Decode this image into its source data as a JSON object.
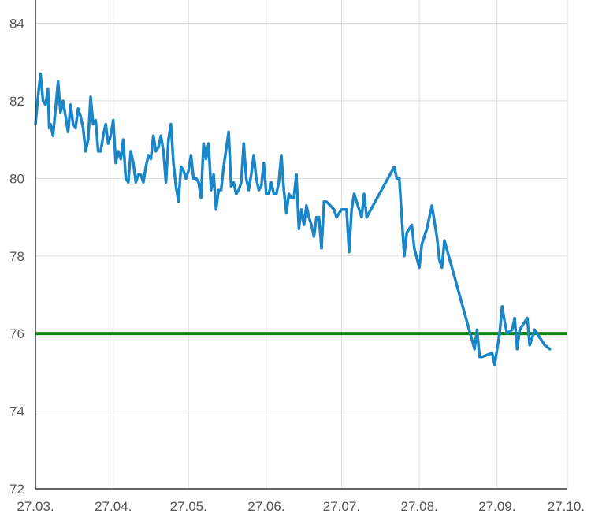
{
  "chart_data": {
    "type": "line",
    "title": "",
    "xlabel": "",
    "ylabel": "",
    "ylim": [
      72,
      84.6
    ],
    "xlim": [
      0,
      212
    ],
    "grid": true,
    "y_ticks": [
      72,
      74,
      76,
      78,
      80,
      82,
      84
    ],
    "x_ticks": [
      {
        "label": "27.03.",
        "value": 0
      },
      {
        "label": "27.04.",
        "value": 31
      },
      {
        "label": "27.05.",
        "value": 61
      },
      {
        "label": "27.06.",
        "value": 92
      },
      {
        "label": "27.07.",
        "value": 122
      },
      {
        "label": "27.08.",
        "value": 153
      },
      {
        "label": "27.09.",
        "value": 184
      },
      {
        "label": "27.10.",
        "value": 214
      }
    ],
    "reference_line": {
      "y": 76,
      "color": "#0a8a0a"
    },
    "series": [
      {
        "color": "#1a86c8",
        "points": [
          [
            0,
            81.4
          ],
          [
            1,
            82.1
          ],
          [
            2,
            82.7
          ],
          [
            3,
            82.0
          ],
          [
            4,
            81.9
          ],
          [
            5,
            82.3
          ],
          [
            5.5,
            81.3
          ],
          [
            6,
            81.4
          ],
          [
            7,
            81.1
          ],
          [
            8,
            81.8
          ],
          [
            9,
            82.5
          ],
          [
            10,
            81.7
          ],
          [
            11,
            82.0
          ],
          [
            12,
            81.6
          ],
          [
            13,
            81.2
          ],
          [
            14,
            81.9
          ],
          [
            15,
            81.4
          ],
          [
            16,
            81.3
          ],
          [
            17,
            81.8
          ],
          [
            18,
            81.6
          ],
          [
            19,
            81.3
          ],
          [
            20,
            80.7
          ],
          [
            21,
            81.0
          ],
          [
            22,
            82.1
          ],
          [
            23,
            81.4
          ],
          [
            24,
            81.5
          ],
          [
            25,
            80.7
          ],
          [
            26,
            80.7
          ],
          [
            27,
            81.1
          ],
          [
            28,
            81.4
          ],
          [
            29,
            80.9
          ],
          [
            30,
            81.1
          ],
          [
            31,
            81.5
          ],
          [
            32,
            80.4
          ],
          [
            33,
            80.7
          ],
          [
            34,
            80.5
          ],
          [
            35,
            81.0
          ],
          [
            36,
            80.0
          ],
          [
            37,
            79.9
          ],
          [
            38,
            80.7
          ],
          [
            39,
            80.4
          ],
          [
            40,
            79.9
          ],
          [
            41,
            80.1
          ],
          [
            42,
            80.1
          ],
          [
            43,
            79.9
          ],
          [
            44,
            80.3
          ],
          [
            45,
            80.6
          ],
          [
            46,
            80.5
          ],
          [
            47,
            81.1
          ],
          [
            48,
            80.7
          ],
          [
            49,
            80.8
          ],
          [
            50,
            81.1
          ],
          [
            51,
            80.7
          ],
          [
            52,
            79.9
          ],
          [
            53,
            81.0
          ],
          [
            54,
            81.4
          ],
          [
            55,
            80.4
          ],
          [
            56,
            79.8
          ],
          [
            57,
            79.4
          ],
          [
            58,
            80.3
          ],
          [
            59,
            80.2
          ],
          [
            60,
            80.0
          ],
          [
            61,
            80.2
          ],
          [
            62,
            80.6
          ],
          [
            63,
            80.0
          ],
          [
            64,
            80.0
          ],
          [
            65,
            79.9
          ],
          [
            66,
            79.5
          ],
          [
            67,
            80.9
          ],
          [
            68,
            80.5
          ],
          [
            69,
            80.9
          ],
          [
            70,
            79.7
          ],
          [
            71,
            80.1
          ],
          [
            72,
            79.2
          ],
          [
            73,
            79.7
          ],
          [
            74,
            79.7
          ],
          [
            75,
            80.3
          ],
          [
            77,
            81.2
          ],
          [
            78,
            79.8
          ],
          [
            79,
            79.9
          ],
          [
            80,
            79.6
          ],
          [
            81,
            79.7
          ],
          [
            82,
            79.9
          ],
          [
            83,
            80.9
          ],
          [
            84,
            80.0
          ],
          [
            85,
            79.7
          ],
          [
            86,
            80.1
          ],
          [
            87,
            80.6
          ],
          [
            88,
            80.0
          ],
          [
            89,
            79.7
          ],
          [
            90,
            79.8
          ],
          [
            91,
            80.4
          ],
          [
            92,
            79.6
          ],
          [
            93,
            79.6
          ],
          [
            94,
            79.9
          ],
          [
            95,
            79.6
          ],
          [
            96,
            79.6
          ],
          [
            97,
            79.9
          ],
          [
            98,
            80.6
          ],
          [
            99,
            79.7
          ],
          [
            100,
            79.1
          ],
          [
            101,
            79.6
          ],
          [
            102,
            79.5
          ],
          [
            103,
            79.5
          ],
          [
            104,
            80.1
          ],
          [
            105,
            78.7
          ],
          [
            106,
            79.2
          ],
          [
            107,
            78.8
          ],
          [
            108,
            79.3
          ],
          [
            109,
            79.0
          ],
          [
            110,
            78.8
          ],
          [
            111,
            78.5
          ],
          [
            112,
            79.0
          ],
          [
            113,
            79.0
          ],
          [
            114,
            78.2
          ],
          [
            115,
            79.4
          ],
          [
            116,
            79.4
          ],
          [
            119,
            79.2
          ],
          [
            120,
            79.0
          ],
          [
            122,
            79.2
          ],
          [
            124,
            79.2
          ],
          [
            125,
            78.1
          ],
          [
            126,
            79.2
          ],
          [
            127,
            79.6
          ],
          [
            129,
            79.2
          ],
          [
            130,
            79.0
          ],
          [
            131,
            79.6
          ],
          [
            132,
            79.0
          ],
          [
            143,
            80.3
          ],
          [
            144,
            80.0
          ],
          [
            145,
            80.0
          ],
          [
            147,
            78.0
          ],
          [
            148,
            78.6
          ],
          [
            150,
            78.8
          ],
          [
            151,
            78.2
          ],
          [
            153,
            77.7
          ],
          [
            154,
            78.3
          ],
          [
            156,
            78.7
          ],
          [
            158,
            79.3
          ],
          [
            160,
            78.5
          ],
          [
            161,
            77.9
          ],
          [
            162,
            77.7
          ],
          [
            163,
            78.4
          ],
          [
            175,
            75.6
          ],
          [
            176,
            76.1
          ],
          [
            177,
            75.4
          ],
          [
            178,
            75.4
          ],
          [
            182,
            75.5
          ],
          [
            183,
            75.2
          ],
          [
            185,
            76.0
          ],
          [
            186,
            76.7
          ],
          [
            187,
            76.3
          ],
          [
            188,
            76.0
          ],
          [
            190,
            76.1
          ],
          [
            191,
            76.4
          ],
          [
            192,
            75.6
          ],
          [
            193,
            76.1
          ],
          [
            196,
            76.4
          ],
          [
            197,
            75.7
          ],
          [
            199,
            76.1
          ],
          [
            200,
            76.0
          ],
          [
            203,
            75.7
          ],
          [
            205,
            75.6
          ]
        ]
      }
    ]
  }
}
